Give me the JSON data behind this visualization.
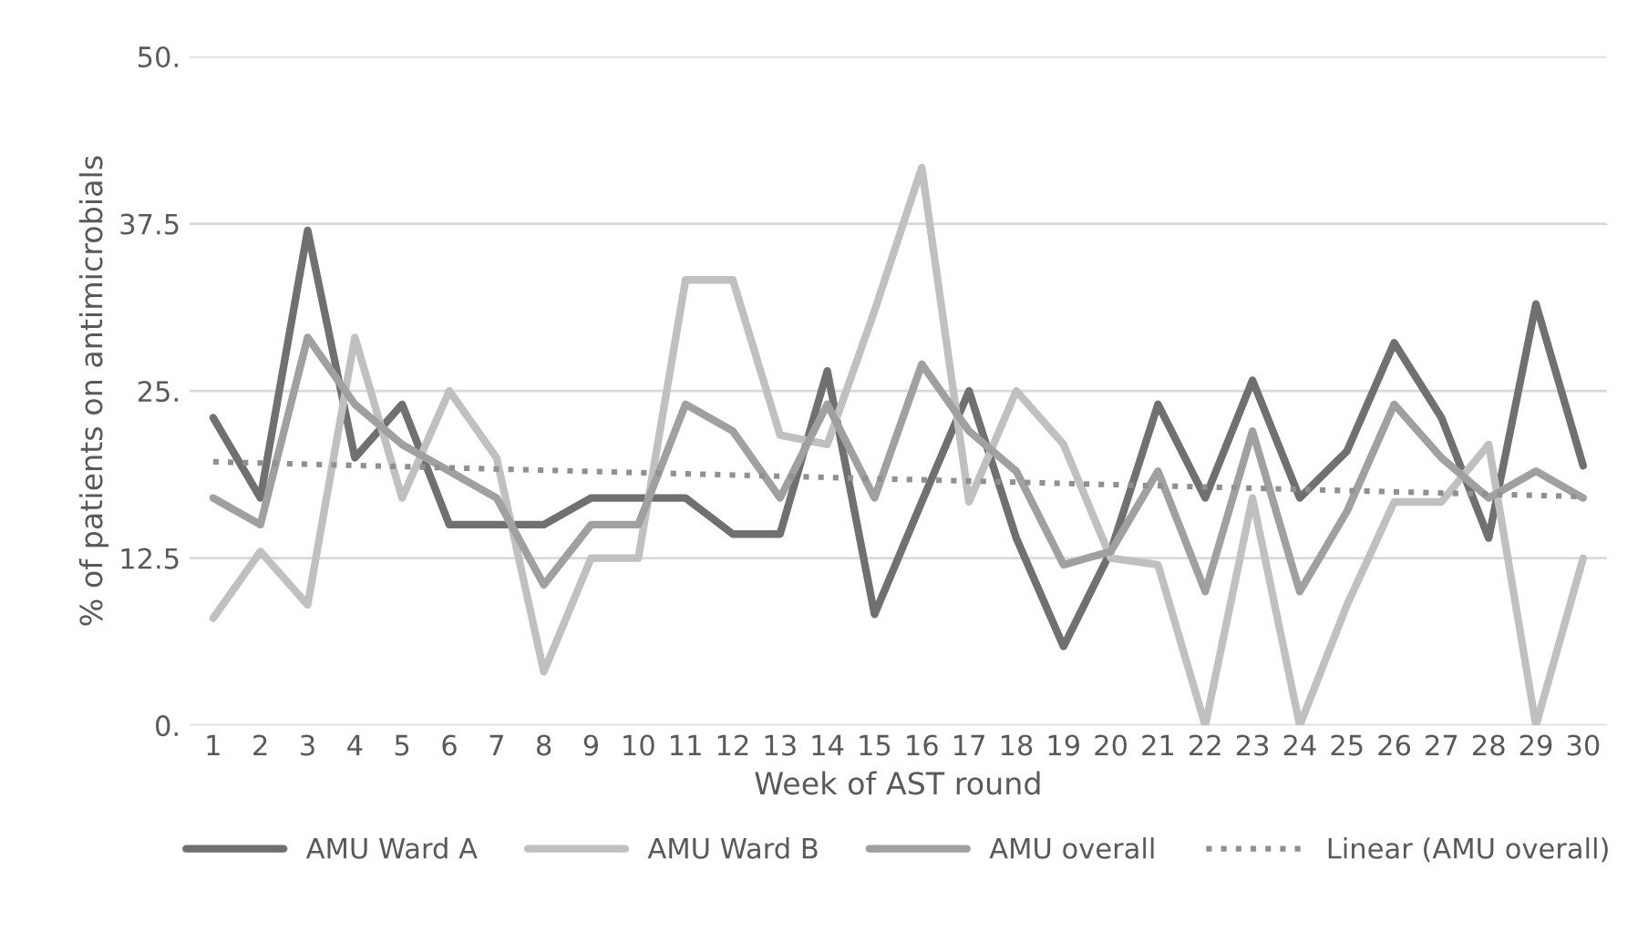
{
  "chart_data": {
    "type": "line",
    "xlabel": "Week of AST round",
    "ylabel": "% of patients on antimicrobials",
    "categories": [
      "1",
      "2",
      "3",
      "4",
      "5",
      "6",
      "7",
      "8",
      "9",
      "10",
      "11",
      "12",
      "13",
      "14",
      "15",
      "16",
      "17",
      "18",
      "19",
      "20",
      "21",
      "22",
      "23",
      "24",
      "25",
      "26",
      "27",
      "28",
      "29",
      "30"
    ],
    "series": [
      {
        "name": "AMU Ward A",
        "color": "#707070",
        "values": [
          23,
          17,
          37,
          20,
          24,
          15,
          15,
          15,
          17,
          17,
          17,
          14.3,
          14.3,
          26.5,
          8.3,
          16.7,
          25,
          14,
          5.9,
          13,
          24,
          17,
          25.8,
          17,
          20.5,
          28.6,
          23,
          14,
          31.5,
          19.4
        ]
      },
      {
        "name": "AMU Ward B",
        "color": "#c0c0c0",
        "values": [
          8,
          13,
          9,
          29,
          17,
          25,
          20,
          4,
          12.5,
          12.5,
          33.3,
          33.3,
          21.7,
          21,
          31,
          41.7,
          16.7,
          25,
          21,
          12.5,
          12,
          0,
          17,
          0,
          9,
          16.7,
          16.7,
          21,
          0,
          12.5
        ]
      },
      {
        "name": "AMU overall",
        "color": "#a0a0a0",
        "values": [
          17,
          15,
          29,
          24,
          21,
          19,
          17,
          10.5,
          15,
          15,
          24,
          22,
          17,
          24,
          17,
          27,
          22,
          19,
          12,
          13,
          19,
          10,
          22,
          10,
          16,
          24,
          20,
          17,
          19,
          17
        ]
      },
      {
        "name": "Linear (AMU overall)",
        "color": "#909090",
        "line_style": "dotted",
        "x": [
          "1",
          "30"
        ],
        "values": [
          19.7,
          17.1
        ]
      }
    ],
    "ylim": [
      0,
      50
    ],
    "yticks": [
      {
        "value": 0,
        "label": "0."
      },
      {
        "value": 12.5,
        "label": "12.5"
      },
      {
        "value": 25,
        "label": "25."
      },
      {
        "value": 37.5,
        "label": "37.5"
      },
      {
        "value": 50,
        "label": "50."
      }
    ],
    "grid": "y",
    "legend": "bottom",
    "marker": "none"
  }
}
